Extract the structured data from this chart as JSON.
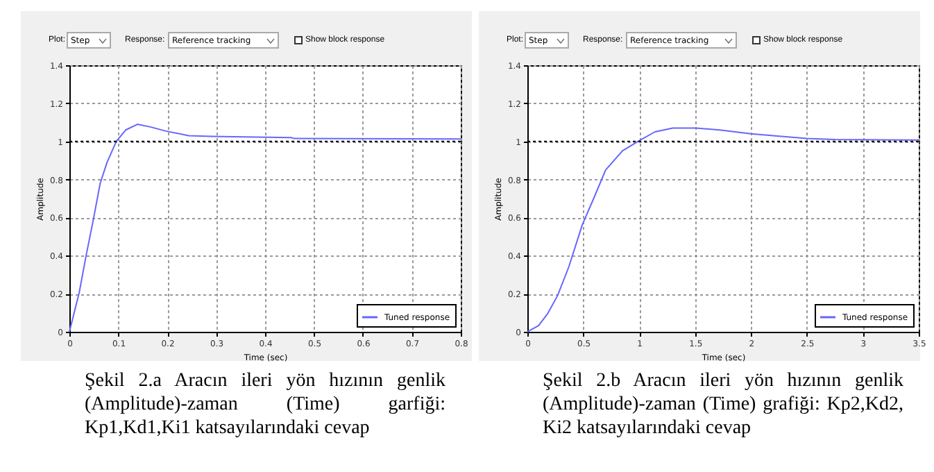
{
  "chart_data": [
    {
      "type": "line",
      "xlabel": "Time (sec)",
      "ylabel": "Amplitude",
      "annotations": [
        "Plot:",
        "Step",
        "Response:",
        "Reference tracking",
        "Show block response",
        "Şekil 2.a Aracın ileri yön hızının genlik (Amplitude)-zaman (Time) garfiği: Kp1,Kd1,Ki1 katsayılarındaki cevap"
      ],
      "x": [
        0,
        0.02,
        0.034,
        0.049,
        0.063,
        0.077,
        0.096,
        0.115,
        0.139,
        0.167,
        0.196,
        0.244,
        0.291,
        0.453,
        0.46,
        0.8
      ],
      "series": [
        {
          "name": "Tuned response",
          "color": "#6666ff",
          "values": [
            0,
            0.205,
            0.398,
            0.59,
            0.78,
            0.89,
            1.0,
            1.06,
            1.09,
            1.075,
            1.055,
            1.03,
            1.026,
            1.02,
            1.015,
            1.013
          ]
        }
      ],
      "xlim": [
        0,
        0.8
      ],
      "xticks": [
        0,
        0.1,
        0.2,
        0.3,
        0.4,
        0.5,
        0.6,
        0.7,
        0.8
      ],
      "ylim": [
        0,
        1.4
      ],
      "yticks": [
        0,
        0.2,
        0.4,
        0.6,
        0.8,
        1,
        1.2,
        1.4
      ],
      "ref_lines": [
        {
          "axis": "y",
          "value": 1,
          "color": "#000000",
          "line_style": "dotted"
        }
      ],
      "grid": true,
      "legend": "bottom right",
      "line_style": "solid"
    },
    {
      "type": "line",
      "xlabel": "Time (sec)",
      "ylabel": "Amplitude",
      "annotations": [
        "Plot:",
        "Step",
        "Response:",
        "Reference tracking",
        "Show block response",
        "Şekil 2.b Aracın ileri yön hızının genlik (Amplitude)-zaman (Time) grafiği: Kp2,Kd2, Ki2 katsayılarındaki cevap"
      ],
      "x": [
        0,
        0.1,
        0.18,
        0.27,
        0.37,
        0.49,
        0.6,
        0.7,
        0.85,
        0.99,
        1.14,
        1.3,
        1.51,
        1.72,
        2.0,
        2.2,
        2.5,
        2.75,
        3.5
      ],
      "series": [
        {
          "name": "Tuned response",
          "color": "#6666ff",
          "values": [
            0,
            0.032,
            0.094,
            0.19,
            0.34,
            0.56,
            0.71,
            0.85,
            0.95,
            1.0,
            1.05,
            1.07,
            1.07,
            1.06,
            1.04,
            1.03,
            1.015,
            1.01,
            1.007
          ]
        }
      ],
      "xlim": [
        0,
        3.5
      ],
      "xticks": [
        0,
        0.5,
        1,
        1.5,
        2,
        2.5,
        3,
        3.5
      ],
      "ylim": [
        0,
        1.4
      ],
      "yticks": [
        0,
        0.2,
        0.4,
        0.6,
        0.8,
        1,
        1.2,
        1.4
      ],
      "ref_lines": [
        {
          "axis": "y",
          "value": 1,
          "color": "#000000",
          "line_style": "dotted"
        }
      ],
      "grid": true,
      "legend": "bottom right",
      "line_style": "solid"
    }
  ]
}
